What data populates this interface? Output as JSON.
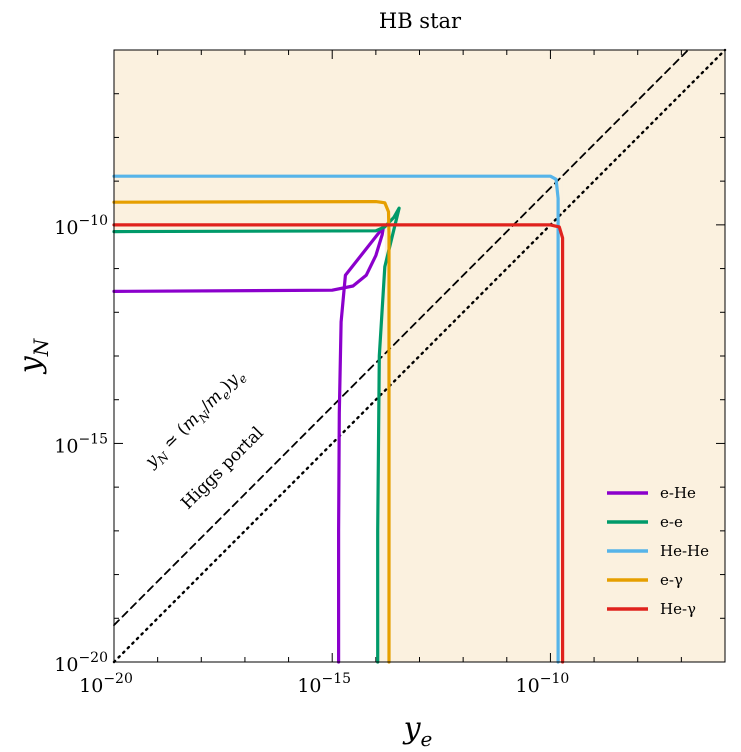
{
  "chart_data": {
    "type": "line",
    "title": "HB star",
    "xlabel": "y",
    "xlabel_sub": "e",
    "ylabel": "y",
    "ylabel_sub": "N",
    "x_scale": "log",
    "y_scale": "log",
    "xlim": [
      1e-20,
      1e-06
    ],
    "ylim": [
      1e-20,
      1e-06
    ],
    "x_ticks": [
      {
        "value": 1e-20,
        "base": "10",
        "exp": "−20"
      },
      {
        "value": 1e-15,
        "base": "10",
        "exp": "−15"
      },
      {
        "value": 1e-10,
        "base": "10",
        "exp": "−10"
      }
    ],
    "y_ticks": [
      {
        "value": 1e-20,
        "base": "10",
        "exp": "−20"
      },
      {
        "value": 1e-15,
        "base": "10",
        "exp": "−15"
      },
      {
        "value": 1e-10,
        "base": "10",
        "exp": "−10"
      }
    ],
    "shaded_region_color": "#fbf1df",
    "legend_position": "bottom-right",
    "series": [
      {
        "name": "e-He",
        "color": "#8b00cc",
        "x": [
          1e-20,
          1e-15,
          3e-15,
          6e-15,
          1e-14,
          1.4e-14,
          1.5e-14,
          2e-15,
          1.6e-15,
          1.45e-15,
          1.4e-15,
          1.4e-15
        ],
        "y": [
          3e-12,
          3.2e-12,
          4e-12,
          7e-12,
          2e-11,
          6e-11,
          9e-11,
          7e-12,
          6e-13,
          5e-15,
          1e-17,
          1e-20
        ]
      },
      {
        "name": "e-e",
        "color": "#009a6a",
        "x": [
          1e-20,
          1e-14,
          1.6e-14,
          2.6e-14,
          3.4e-14,
          1.6e-14,
          1.2e-14,
          1.1e-14,
          1.1e-14
        ],
        "y": [
          7e-11,
          7.3e-11,
          9e-11,
          1.5e-10,
          2.4e-10,
          1.1e-11,
          1e-13,
          1e-17,
          1e-20
        ]
      },
      {
        "name": "He-He",
        "color": "#56b4e9",
        "x": [
          1e-20,
          1e-10,
          1.35e-10,
          1.5e-10,
          1.5e-10,
          1.5e-10
        ],
        "y": [
          1.3e-09,
          1.3e-09,
          1.1e-09,
          4e-10,
          1e-12,
          1e-20
        ]
      },
      {
        "name": "e-γ",
        "color": "#e69f00",
        "x": [
          1e-20,
          1e-14,
          1.6e-14,
          1.95e-14,
          2e-14,
          2e-14,
          2e-14
        ],
        "y": [
          3.3e-10,
          3.4e-10,
          3.2e-10,
          2e-10,
          6e-11,
          1e-13,
          1e-20
        ]
      },
      {
        "name": "He-γ",
        "color": "#e0221d",
        "x": [
          1e-20,
          1e-10,
          1.6e-10,
          1.9e-10,
          1.9e-10,
          1.9e-10
        ],
        "y": [
          1e-10,
          1e-10,
          9e-11,
          5e-11,
          1e-12,
          1e-20
        ]
      }
    ],
    "reference_lines": [
      {
        "label": "y_N ≃ (m_N/m_e) y_e",
        "style": "dashed",
        "color": "#000000",
        "slope": 1,
        "ratio": 7.0
      },
      {
        "label": "Higgs portal",
        "style": "dotted",
        "color": "#000000",
        "slope": 1,
        "ratio": 1.0
      }
    ],
    "annotations": [
      {
        "text_parts": [
          "y",
          "N",
          " ≃ (",
          "m",
          "N",
          "/",
          "m",
          "e",
          ")",
          "y",
          "e"
        ]
      },
      {
        "text": "Higgs portal"
      }
    ]
  }
}
